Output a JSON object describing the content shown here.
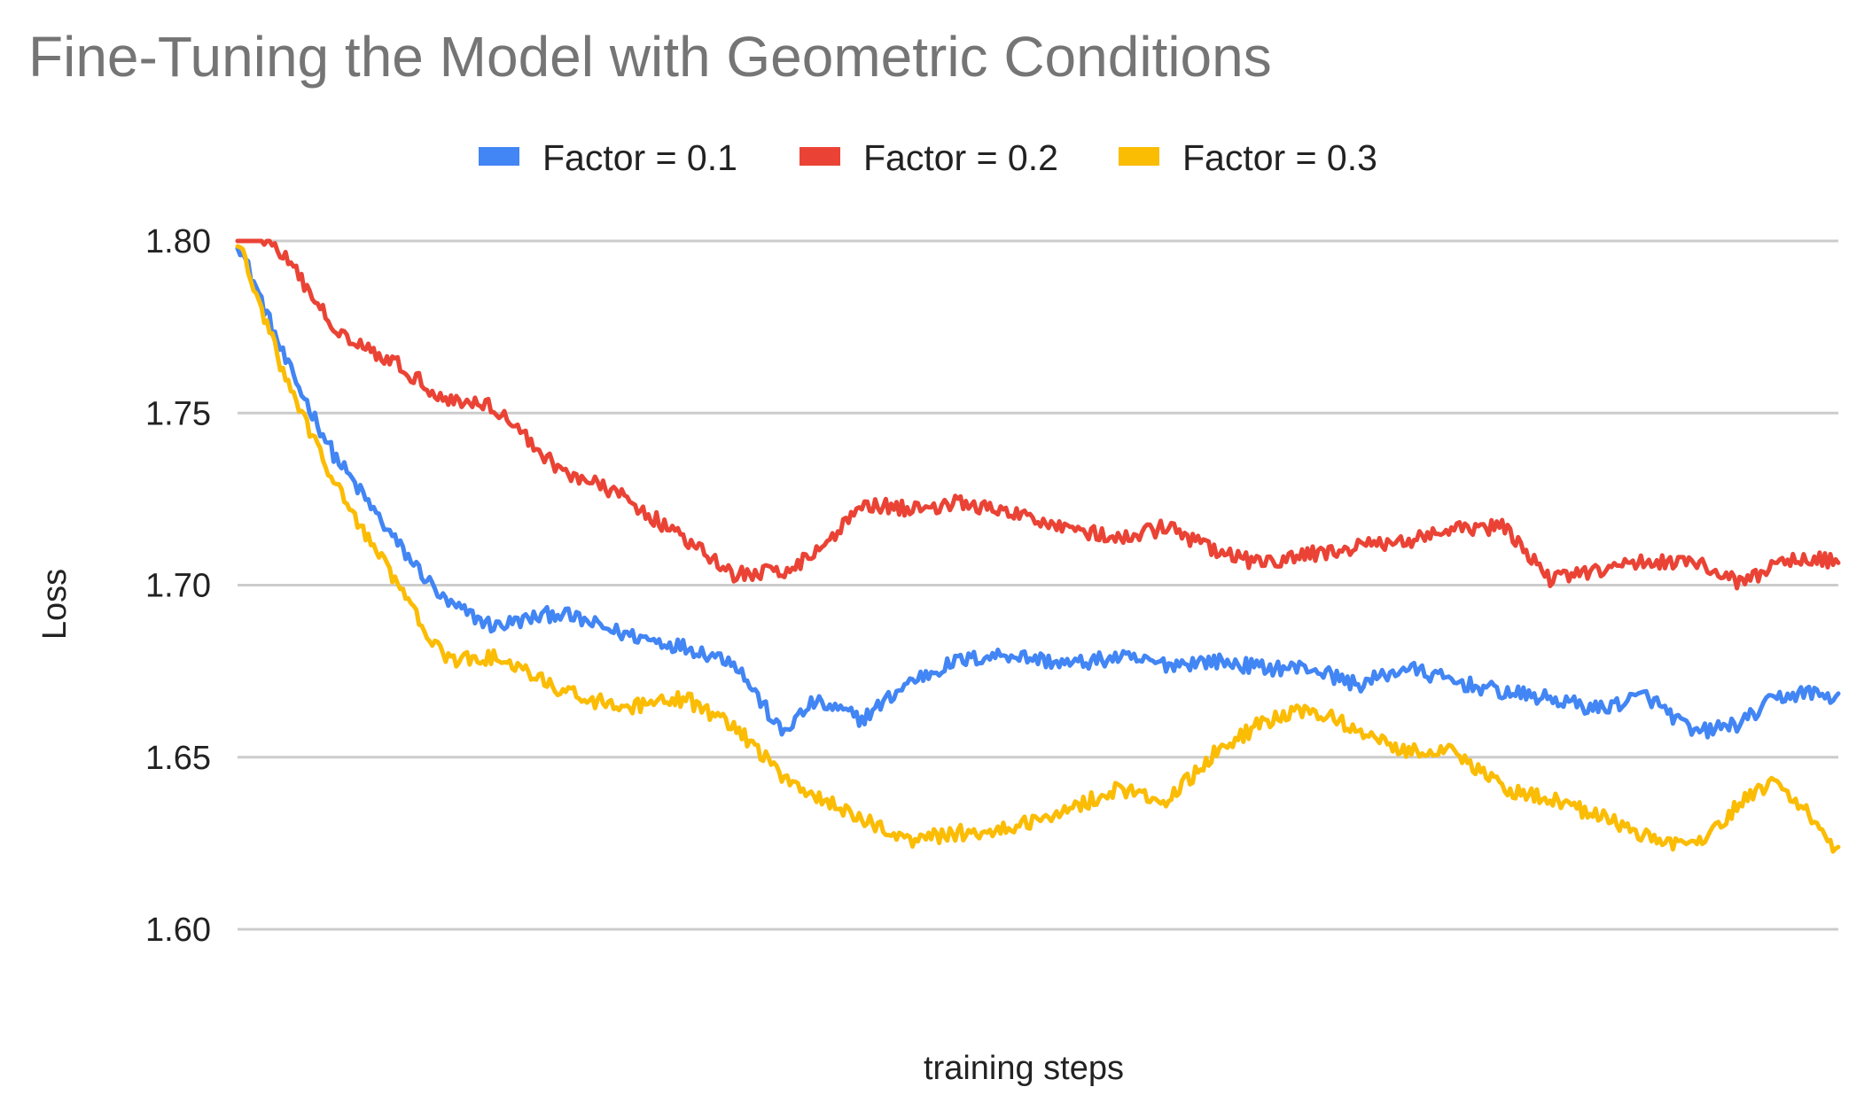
{
  "chart_data": {
    "type": "line",
    "title": "Fine-Tuning the Model with Geometric Conditions",
    "xlabel": "training steps",
    "ylabel": "Loss",
    "ylim": [
      1.6,
      1.8
    ],
    "yticks": [
      "1.60",
      "1.65",
      "1.70",
      "1.75",
      "1.80"
    ],
    "ytick_values": [
      1.6,
      1.65,
      1.7,
      1.75,
      1.8
    ],
    "xlim": [
      0,
      100
    ],
    "grid": true,
    "legend_position": "top",
    "x": [
      0,
      3,
      6,
      10,
      13,
      16,
      20,
      24,
      28,
      31,
      34,
      36,
      38,
      39,
      42,
      45,
      48,
      52,
      55,
      58,
      61,
      64,
      67,
      70,
      73,
      76,
      79,
      82,
      85,
      88,
      91,
      94,
      96,
      98,
      100
    ],
    "series": [
      {
        "name": "Factor = 0.1",
        "color": "#4285F4",
        "values": [
          1.8,
          1.765,
          1.738,
          1.712,
          1.695,
          1.688,
          1.692,
          1.686,
          1.682,
          1.678,
          1.657,
          1.666,
          1.663,
          1.661,
          1.672,
          1.678,
          1.68,
          1.677,
          1.679,
          1.677,
          1.678,
          1.676,
          1.676,
          1.671,
          1.676,
          1.672,
          1.669,
          1.667,
          1.664,
          1.668,
          1.657,
          1.66,
          1.667,
          1.669,
          1.667
        ]
      },
      {
        "name": "Factor = 0.2",
        "color": "#EA4335",
        "values": [
          1.808,
          1.795,
          1.775,
          1.764,
          1.754,
          1.752,
          1.734,
          1.726,
          1.713,
          1.703,
          1.704,
          1.709,
          1.718,
          1.724,
          1.722,
          1.724,
          1.721,
          1.717,
          1.713,
          1.717,
          1.71,
          1.706,
          1.709,
          1.711,
          1.713,
          1.716,
          1.717,
          1.702,
          1.704,
          1.707,
          1.707,
          1.7,
          1.706,
          1.708,
          1.707
        ]
      },
      {
        "name": "Factor = 0.3",
        "color": "#FBBC04",
        "values": [
          1.8,
          1.76,
          1.73,
          1.7,
          1.678,
          1.679,
          1.67,
          1.664,
          1.667,
          1.659,
          1.645,
          1.639,
          1.634,
          1.632,
          1.626,
          1.628,
          1.629,
          1.635,
          1.641,
          1.637,
          1.651,
          1.66,
          1.664,
          1.658,
          1.652,
          1.652,
          1.641,
          1.638,
          1.633,
          1.627,
          1.624,
          1.637,
          1.643,
          1.635,
          1.622
        ]
      }
    ]
  }
}
